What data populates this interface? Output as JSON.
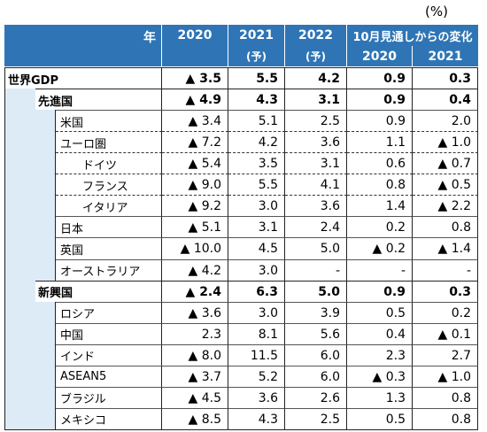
{
  "unit": "(%)",
  "header": {
    "year_label": "年",
    "columns": [
      {
        "label": "2020"
      },
      {
        "label": "2021",
        "sub": "(予)"
      },
      {
        "label": "2022",
        "sub": "(予)"
      }
    ],
    "change_label": "10月見通しからの変化",
    "change_columns": [
      "2020",
      "2021"
    ]
  },
  "rows": [
    {
      "label": "世界GDP",
      "level": 0,
      "bold": true,
      "values": [
        "▲ 3.5",
        "5.5",
        "4.2",
        "0.9",
        "0.3"
      ]
    },
    {
      "label": "先進国",
      "level": 1,
      "bold": true,
      "values": [
        "▲ 4.9",
        "4.3",
        "3.1",
        "0.9",
        "0.4"
      ]
    },
    {
      "label": "米国",
      "level": 2,
      "values": [
        "▲ 3.4",
        "5.1",
        "2.5",
        "0.9",
        "2.0"
      ]
    },
    {
      "label": "ユーロ圏",
      "level": 2,
      "dashed": true,
      "values": [
        "▲ 7.2",
        "4.2",
        "3.6",
        "1.1",
        "▲ 1.0"
      ]
    },
    {
      "label": "ドイツ",
      "level": 3,
      "dashed": true,
      "values": [
        "▲ 5.4",
        "3.5",
        "3.1",
        "0.6",
        "▲ 0.7"
      ]
    },
    {
      "label": "フランス",
      "level": 3,
      "dashed": true,
      "values": [
        "▲ 9.0",
        "5.5",
        "4.1",
        "0.8",
        "▲ 0.5"
      ]
    },
    {
      "label": "イタリア",
      "level": 3,
      "dashed": true,
      "values": [
        "▲ 9.2",
        "3.0",
        "3.6",
        "1.4",
        "▲ 2.2"
      ]
    },
    {
      "label": "日本",
      "level": 2,
      "values": [
        "▲ 5.1",
        "3.1",
        "2.4",
        "0.2",
        "0.8"
      ]
    },
    {
      "label": "英国",
      "level": 2,
      "values": [
        "▲ 10.0",
        "4.5",
        "5.0",
        "▲ 0.2",
        "▲ 1.4"
      ]
    },
    {
      "label": "オーストラリア",
      "level": 2,
      "values": [
        "▲ 4.2",
        "3.0",
        "-",
        "-",
        "-"
      ]
    },
    {
      "label": "新興国",
      "level": 1,
      "bold": true,
      "values": [
        "▲ 2.4",
        "6.3",
        "5.0",
        "0.9",
        "0.3"
      ]
    },
    {
      "label": "ロシア",
      "level": 2,
      "values": [
        "▲ 3.6",
        "3.0",
        "3.9",
        "0.5",
        "0.2"
      ]
    },
    {
      "label": "中国",
      "level": 2,
      "values": [
        "2.3",
        "8.1",
        "5.6",
        "0.4",
        "▲ 0.1"
      ]
    },
    {
      "label": "インド",
      "level": 2,
      "values": [
        "▲ 8.0",
        "11.5",
        "6.0",
        "2.3",
        "2.7"
      ]
    },
    {
      "label": "ASEAN5",
      "level": 2,
      "values": [
        "▲ 3.7",
        "5.2",
        "6.0",
        "▲ 0.3",
        "▲ 1.0"
      ]
    },
    {
      "label": "ブラジル",
      "level": 2,
      "values": [
        "▲ 4.5",
        "3.6",
        "2.6",
        "1.3",
        "0.8"
      ]
    },
    {
      "label": "メキシコ",
      "level": 2,
      "values": [
        "▲ 8.5",
        "4.3",
        "2.5",
        "0.5",
        "0.8"
      ]
    }
  ]
}
